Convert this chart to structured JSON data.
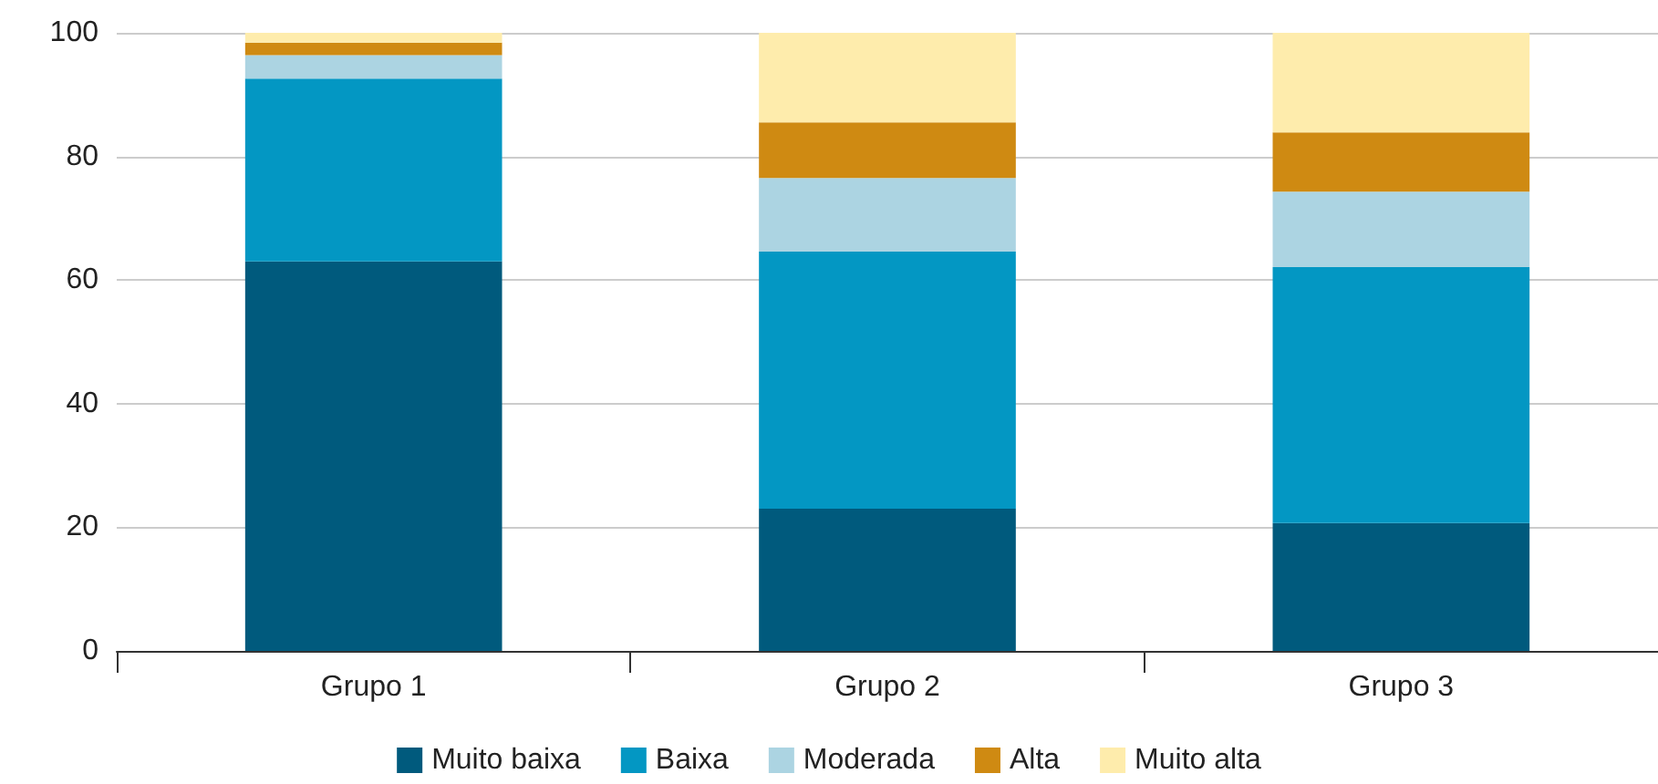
{
  "chart_data": {
    "type": "bar",
    "stacked": true,
    "categories": [
      "Grupo 1",
      "Grupo 2",
      "Grupo 3"
    ],
    "series": [
      {
        "name": "Muito baixa",
        "color": "#005a7d",
        "values": [
          63,
          23,
          20.7
        ]
      },
      {
        "name": "Baixa",
        "color": "#0397c3",
        "values": [
          29.6,
          41.6,
          41.4
        ]
      },
      {
        "name": "Moderada",
        "color": "#acd4e2",
        "values": [
          3.8,
          11.9,
          12.2
        ]
      },
      {
        "name": "Alta",
        "color": "#cf8a12",
        "values": [
          2,
          9,
          9.6
        ]
      },
      {
        "name": "Muito alta",
        "color": "#feecac",
        "values": [
          1.6,
          14.5,
          16.1
        ]
      }
    ],
    "ylim": [
      0,
      100
    ],
    "yticks": [
      0,
      20,
      40,
      60,
      80,
      100
    ],
    "grid": "y",
    "legend": "bottom"
  }
}
